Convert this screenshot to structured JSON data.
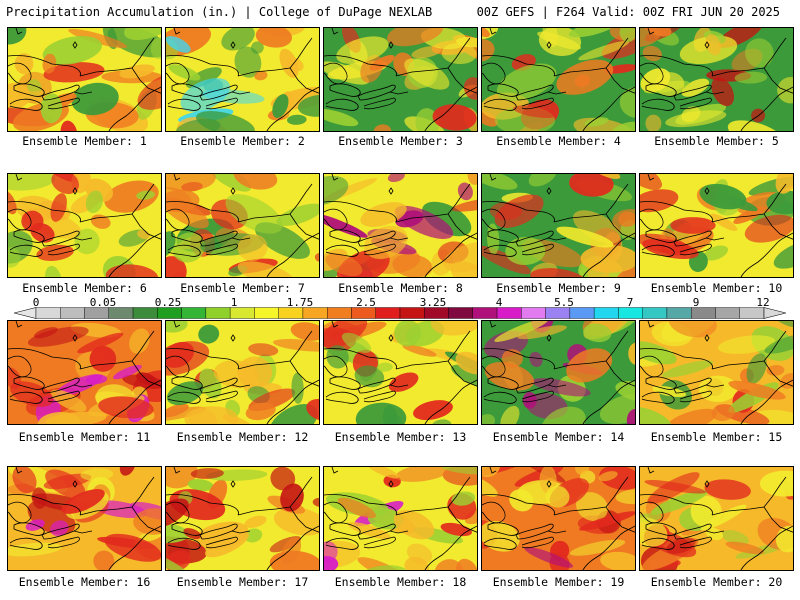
{
  "header": {
    "left_title": "Precipitation Accumulation (in.) | College of DuPage NEXLAB",
    "right_title": "00Z GEFS | F264 Valid: 00Z FRI JUN 20 2025"
  },
  "colorbar": {
    "tick_labels": [
      "0",
      "0.05",
      "0.25",
      "1",
      "1.75",
      "2.5",
      "3.25",
      "4",
      "5.5",
      "7",
      "9",
      "12"
    ],
    "colors": [
      "#d8d8d8",
      "#bdbdbd",
      "#a0a0a0",
      "#6e8a6e",
      "#3c8c3c",
      "#1f9e1f",
      "#35b535",
      "#8fd02b",
      "#d8e830",
      "#f5f52a",
      "#f8d21e",
      "#f6a622",
      "#f07e1e",
      "#ec5a1e",
      "#e01e1e",
      "#c41414",
      "#a00a28",
      "#800a40",
      "#b0107a",
      "#d81cc8",
      "#e27af0",
      "#9a82f2",
      "#5a9af5",
      "#23d6f0",
      "#17e7e0",
      "#35c7c3",
      "#55a8a6",
      "#8a8a8a",
      "#a6a6a6",
      "#c7c7c7"
    ]
  },
  "panels": [
    {
      "label": "Ensemble Member: 1",
      "palette": [
        "#f2ea2e",
        "#f6b92a",
        "#ef7a22",
        "#e22a1e",
        "#9bd032",
        "#3c9a3a"
      ]
    },
    {
      "label": "Ensemble Member: 2",
      "palette": [
        "#f2ea2e",
        "#3c9a3a",
        "#9bd032",
        "#f6b92a",
        "#ef7a22",
        "#3fd6ee"
      ]
    },
    {
      "label": "Ensemble Member: 3",
      "palette": [
        "#3c9a3a",
        "#f2ea2e",
        "#9bd032",
        "#f6b92a",
        "#ef7a22",
        "#e22a1e"
      ]
    },
    {
      "label": "Ensemble Member: 4",
      "palette": [
        "#3c9a3a",
        "#9bd032",
        "#f2ea2e",
        "#f6b92a",
        "#ef7a22",
        "#e22a1e"
      ]
    },
    {
      "label": "Ensemble Member: 5",
      "palette": [
        "#3c9a3a",
        "#f2ea2e",
        "#9bd032",
        "#f6b92a",
        "#ef7a22",
        "#c41414"
      ]
    },
    {
      "label": "Ensemble Member: 6",
      "palette": [
        "#f2ea2e",
        "#f6b92a",
        "#9bd032",
        "#3c9a3a",
        "#ef7a22",
        "#e22a1e"
      ]
    },
    {
      "label": "Ensemble Member: 7",
      "palette": [
        "#f2ea2e",
        "#3c9a3a",
        "#9bd032",
        "#f6b92a",
        "#ef7a22",
        "#e22a1e"
      ]
    },
    {
      "label": "Ensemble Member: 8",
      "palette": [
        "#f2ea2e",
        "#3c9a3a",
        "#ef7a22",
        "#e22a1e",
        "#f6b92a",
        "#b0107a"
      ]
    },
    {
      "label": "Ensemble Member: 9",
      "palette": [
        "#3c9a3a",
        "#9bd032",
        "#f2ea2e",
        "#f6b92a",
        "#ef7a22",
        "#e22a1e"
      ]
    },
    {
      "label": "Ensemble Member: 10",
      "palette": [
        "#f2ea2e",
        "#f6b92a",
        "#ef7a22",
        "#3c9a3a",
        "#e22a1e",
        "#9bd032"
      ]
    },
    {
      "label": "Ensemble Member: 11",
      "palette": [
        "#ef7a22",
        "#e22a1e",
        "#f6b92a",
        "#f2ea2e",
        "#c41414",
        "#d81cc8"
      ]
    },
    {
      "label": "Ensemble Member: 12",
      "palette": [
        "#f2ea2e",
        "#9bd032",
        "#3c9a3a",
        "#f6b92a",
        "#ef7a22",
        "#e22a1e"
      ]
    },
    {
      "label": "Ensemble Member: 13",
      "palette": [
        "#f2ea2e",
        "#f6b92a",
        "#ef7a22",
        "#e22a1e",
        "#9bd032",
        "#3c9a3a"
      ]
    },
    {
      "label": "Ensemble Member: 14",
      "palette": [
        "#3c9a3a",
        "#9bd032",
        "#f2ea2e",
        "#f6b92a",
        "#ef7a22",
        "#b0107a"
      ]
    },
    {
      "label": "Ensemble Member: 15",
      "palette": [
        "#f6b92a",
        "#ef7a22",
        "#f2ea2e",
        "#e22a1e",
        "#9bd032",
        "#3c9a3a"
      ]
    },
    {
      "label": "Ensemble Member: 16",
      "palette": [
        "#f6b92a",
        "#ef7a22",
        "#e22a1e",
        "#f2ea2e",
        "#c41414",
        "#d81cc8"
      ]
    },
    {
      "label": "Ensemble Member: 17",
      "palette": [
        "#f2ea2e",
        "#f6b92a",
        "#ef7a22",
        "#e22a1e",
        "#c41414",
        "#9bd032"
      ]
    },
    {
      "label": "Ensemble Member: 18",
      "palette": [
        "#f2ea2e",
        "#f6b92a",
        "#ef7a22",
        "#e22a1e",
        "#9bd032",
        "#d81cc8"
      ]
    },
    {
      "label": "Ensemble Member: 19",
      "palette": [
        "#ef7a22",
        "#e22a1e",
        "#c41414",
        "#f6b92a",
        "#f2ea2e",
        "#b0107a"
      ]
    },
    {
      "label": "Ensemble Member: 20",
      "palette": [
        "#f6b92a",
        "#ef7a22",
        "#e22a1e",
        "#f2ea2e",
        "#c41414",
        "#9bd032"
      ]
    }
  ]
}
